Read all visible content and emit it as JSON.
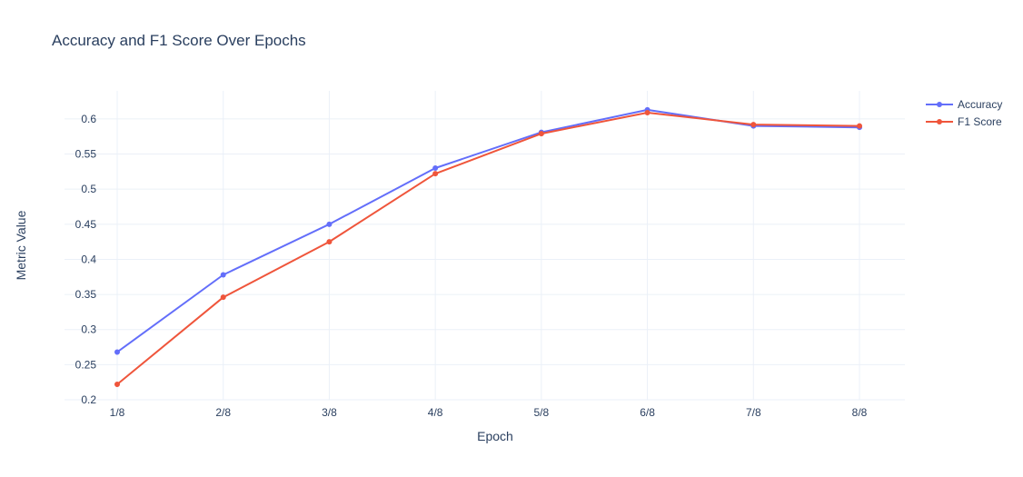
{
  "chart_data": {
    "type": "line",
    "title": "Accuracy and F1 Score Over Epochs",
    "xlabel": "Epoch",
    "ylabel": "Metric Value",
    "categories": [
      "1/8",
      "2/8",
      "3/8",
      "4/8",
      "5/8",
      "6/8",
      "7/8",
      "8/8"
    ],
    "ylim": [
      0.2,
      0.64
    ],
    "yticks": [
      0.2,
      0.25,
      0.3,
      0.35,
      0.4,
      0.45,
      0.5,
      0.55,
      0.6
    ],
    "ytick_labels": [
      "0.2",
      "0.25",
      "0.3",
      "0.35",
      "0.4",
      "0.45",
      "0.5",
      "0.55",
      "0.6"
    ],
    "grid": true,
    "legend_position": "top-right",
    "series": [
      {
        "name": "Accuracy",
        "color": "#636efa",
        "values": [
          0.268,
          0.378,
          0.45,
          0.53,
          0.581,
          0.613,
          0.59,
          0.588
        ]
      },
      {
        "name": "F1 Score",
        "color": "#ef553b",
        "values": [
          0.222,
          0.346,
          0.425,
          0.522,
          0.579,
          0.609,
          0.592,
          0.59
        ]
      }
    ]
  }
}
